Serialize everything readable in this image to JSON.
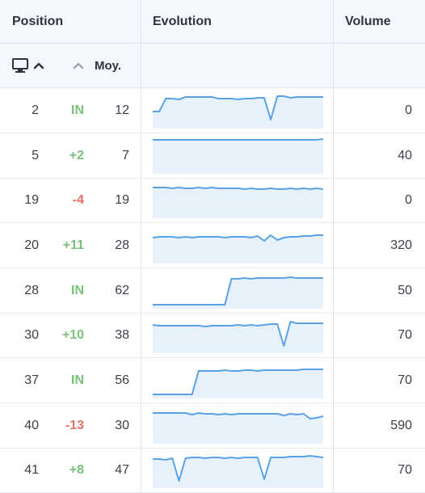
{
  "header": {
    "position": "Position",
    "evolution": "Evolution",
    "volume": "Volume"
  },
  "subheader": {
    "device_icon": "monitor-icon",
    "sort_icon": "chevron-up-icon",
    "avg_label": "Moy."
  },
  "colors": {
    "positive": "#7cc17a",
    "negative": "#e5716b",
    "line": "#5aa2e6",
    "fill": "#e6f1fb"
  },
  "rows": [
    {
      "position": "2",
      "change": "IN",
      "change_type": "new",
      "average": "12",
      "volume": "0",
      "trend": [
        23,
        23,
        7,
        7,
        8,
        5,
        5,
        5,
        5,
        5,
        7,
        7,
        7,
        8,
        7,
        7,
        6,
        6,
        33,
        4,
        4,
        6,
        5,
        5,
        5,
        5,
        5
      ]
    },
    {
      "position": "5",
      "change": "+2",
      "change_type": "up",
      "average": "7",
      "volume": "40",
      "trend": [
        2,
        2,
        2,
        2,
        2,
        2,
        2,
        2,
        2,
        2,
        2,
        2,
        2,
        2,
        2,
        2,
        2,
        2,
        2,
        2,
        2,
        2,
        2,
        2,
        2,
        2,
        1
      ]
    },
    {
      "position": "19",
      "change": "-4",
      "change_type": "down",
      "average": "19",
      "volume": "0",
      "trend": [
        6,
        6,
        6,
        7,
        6,
        7,
        7,
        6,
        7,
        6,
        7,
        7,
        7,
        7,
        8,
        7,
        8,
        8,
        7,
        8,
        8,
        7,
        8,
        7,
        8,
        7,
        8
      ]
    },
    {
      "position": "20",
      "change": "+11",
      "change_type": "up",
      "average": "28",
      "volume": "320",
      "trend": [
        12,
        11,
        11,
        11,
        12,
        11,
        12,
        11,
        11,
        11,
        11,
        12,
        11,
        11,
        11,
        12,
        10,
        16,
        9,
        15,
        12,
        11,
        11,
        10,
        10,
        9,
        9
      ]
    },
    {
      "position": "28",
      "change": "IN",
      "change_type": "new",
      "average": "62",
      "volume": "50",
      "trend": [
        39,
        39,
        39,
        39,
        39,
        39,
        39,
        39,
        39,
        39,
        39,
        39,
        7,
        7,
        6,
        7,
        6,
        6,
        6,
        6,
        6,
        5,
        6,
        6,
        6,
        6,
        6
      ]
    },
    {
      "position": "30",
      "change": "+10",
      "change_type": "up",
      "average": "38",
      "volume": "70",
      "trend": [
        9,
        10,
        10,
        10,
        10,
        10,
        10,
        10,
        11,
        10,
        10,
        10,
        10,
        9,
        10,
        9,
        10,
        9,
        8,
        8,
        35,
        5,
        7,
        7,
        7,
        7,
        7
      ]
    },
    {
      "position": "37",
      "change": "IN",
      "change_type": "new",
      "average": "56",
      "volume": "70",
      "trend": [
        39,
        39,
        39,
        39,
        39,
        39,
        39,
        10,
        10,
        10,
        10,
        9,
        10,
        10,
        9,
        9,
        10,
        9,
        9,
        9,
        9,
        9,
        9,
        8,
        8,
        8,
        8
      ]
    },
    {
      "position": "40",
      "change": "-13",
      "change_type": "down",
      "average": "30",
      "volume": "590",
      "trend": [
        6,
        6,
        6,
        6,
        6,
        6,
        8,
        6,
        7,
        7,
        8,
        7,
        8,
        7,
        7,
        7,
        7,
        7,
        7,
        7,
        9,
        7,
        8,
        7,
        13,
        12,
        10
      ]
    },
    {
      "position": "41",
      "change": "+8",
      "change_type": "up",
      "average": "47",
      "volume": "70",
      "trend": [
        8,
        8,
        9,
        7,
        35,
        7,
        6,
        6,
        7,
        6,
        6,
        7,
        6,
        7,
        6,
        6,
        6,
        33,
        6,
        6,
        6,
        5,
        5,
        5,
        4,
        5,
        6
      ]
    }
  ]
}
